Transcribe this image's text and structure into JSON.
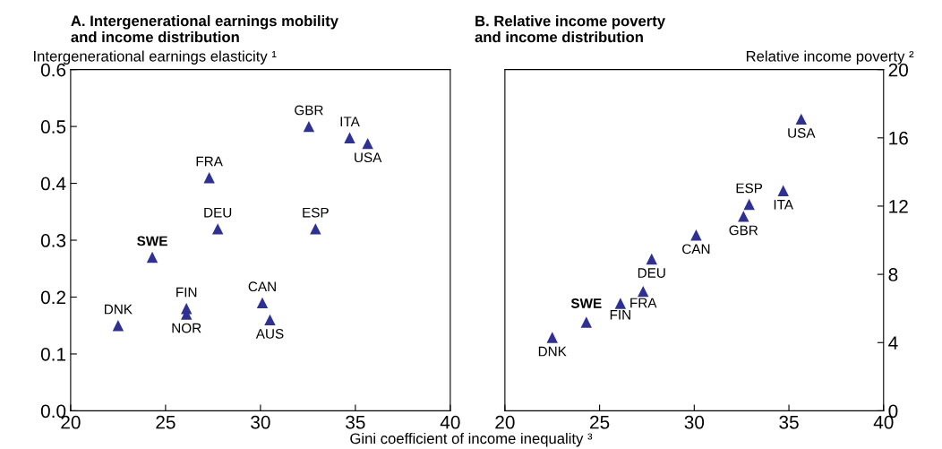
{
  "chart_data": [
    {
      "type": "scatter",
      "title": "A. Intergenerational earnings mobility\nand income distribution",
      "ylabel": "Intergenerational earnings elasticity ¹",
      "xlabel": "Gini coefficient of income inequality ³",
      "marker": "triangle",
      "legend": false,
      "grid": false,
      "xlim": [
        20,
        40
      ],
      "xticks": [
        20,
        25,
        30,
        35,
        40
      ],
      "ylim": [
        0,
        0.6
      ],
      "yticks": [
        {
          "value": 0,
          "label": "0.0"
        },
        0.1,
        0.2,
        0.3,
        0.4,
        0.5,
        0.6
      ],
      "series": [
        {
          "color": "#2e3192",
          "x": [
            22.5,
            24.3,
            26.1,
            26.1,
            27.3,
            27.75,
            30.1,
            30.5,
            32.55,
            32.9,
            34.7,
            35.65
          ],
          "values": [
            0.15,
            0.27,
            0.18,
            0.17,
            0.41,
            0.32,
            0.19,
            0.16,
            0.5,
            0.32,
            0.48,
            0.47
          ]
        }
      ],
      "annotations": [
        {
          "text": "DNK",
          "x": 22.5,
          "y": 0.15
        },
        {
          "text": "SWE",
          "x": 24.3,
          "y": 0.27
        },
        {
          "text": "FIN",
          "x": 26.1,
          "y": 0.18
        },
        {
          "text": "NOR",
          "x": 26.1,
          "y": 0.17
        },
        {
          "text": "FRA",
          "x": 27.3,
          "y": 0.41
        },
        {
          "text": "DEU",
          "x": 27.75,
          "y": 0.32
        },
        {
          "text": "CAN",
          "x": 30.1,
          "y": 0.19
        },
        {
          "text": "AUS",
          "x": 30.5,
          "y": 0.16
        },
        {
          "text": "GBR",
          "x": 32.55,
          "y": 0.5
        },
        {
          "text": "ESP",
          "x": 32.9,
          "y": 0.32
        },
        {
          "text": "ITA",
          "x": 34.7,
          "y": 0.48
        },
        {
          "text": "USA",
          "x": 35.65,
          "y": 0.47
        }
      ]
    },
    {
      "type": "scatter",
      "title": "B. Relative income poverty\nand income distribution",
      "ylabel": "Relative income poverty ²",
      "marker": "triangle",
      "legend": false,
      "grid": false,
      "xlim": [
        20,
        40
      ],
      "xticks": [
        20,
        25,
        30,
        35,
        40
      ],
      "ylim": [
        0,
        20
      ],
      "yticks": [
        0,
        4,
        8,
        12,
        16,
        20
      ],
      "series": [
        {
          "color": "#2e3192",
          "x": [
            22.5,
            24.3,
            26.1,
            27.3,
            27.75,
            30.1,
            32.6,
            32.9,
            34.7,
            35.65
          ],
          "values": [
            4.3,
            5.2,
            6.3,
            7.0,
            8.9,
            10.3,
            11.4,
            12.1,
            12.9,
            17.1
          ]
        }
      ],
      "annotations": [
        {
          "text": "DNK",
          "x": 22.5,
          "y": 4.3
        },
        {
          "text": "SWE",
          "x": 24.3,
          "y": 5.2
        },
        {
          "text": "FIN",
          "x": 26.1,
          "y": 6.3
        },
        {
          "text": "FRA",
          "x": 27.3,
          "y": 7.0
        },
        {
          "text": "DEU",
          "x": 27.75,
          "y": 8.9
        },
        {
          "text": "CAN",
          "x": 30.1,
          "y": 10.3
        },
        {
          "text": "GBR",
          "x": 32.6,
          "y": 11.4
        },
        {
          "text": "ESP",
          "x": 32.9,
          "y": 12.1
        },
        {
          "text": "ITA",
          "x": 34.7,
          "y": 12.9
        },
        {
          "text": "USA",
          "x": 35.65,
          "y": 17.1
        }
      ]
    }
  ]
}
